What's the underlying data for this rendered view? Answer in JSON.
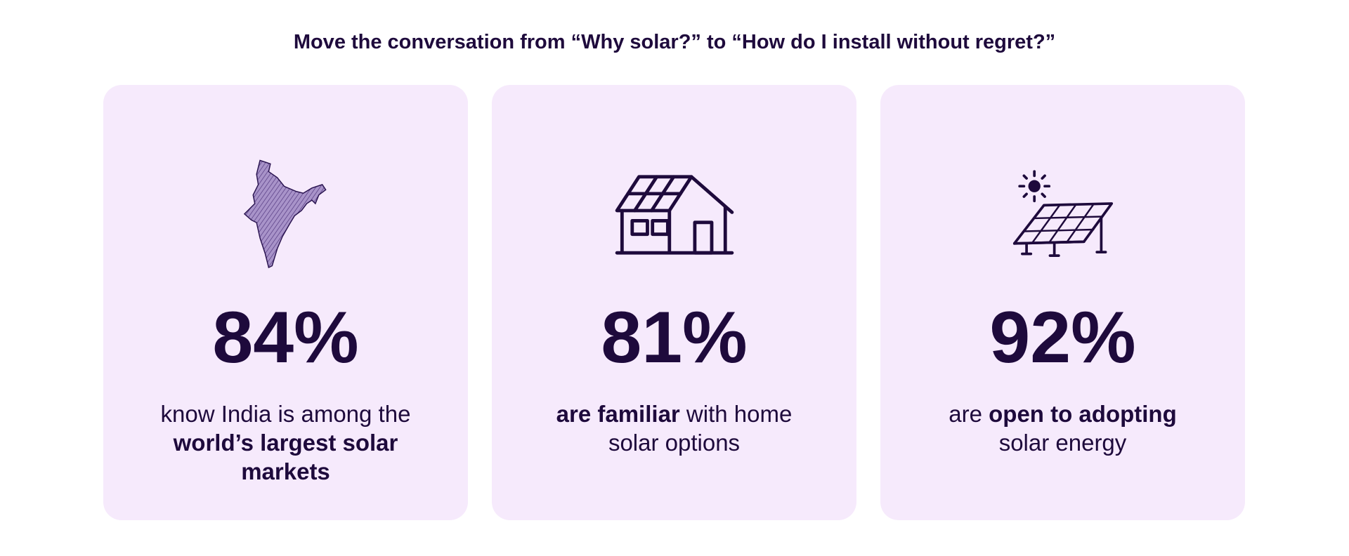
{
  "header": {
    "title": "Move the conversation from “Why solar?” to “How do I install without regret?”"
  },
  "cards": [
    {
      "stat": "84%",
      "lines": [
        [
          {
            "text": "know India is among the"
          }
        ],
        [
          {
            "text": "world’s largest solar",
            "bold": true
          }
        ],
        [
          {
            "text": "markets",
            "bold": true
          }
        ]
      ]
    },
    {
      "stat": "81%",
      "lines": [
        [
          {
            "text": "are familiar",
            "bold": true
          },
          {
            "text": " with home"
          }
        ],
        [
          {
            "text": "solar options"
          }
        ]
      ]
    },
    {
      "stat": "92%",
      "lines": [
        [
          {
            "text": "are "
          },
          {
            "text": "open to adopting",
            "bold": true
          }
        ],
        [
          {
            "text": "solar energy"
          }
        ]
      ]
    }
  ]
}
